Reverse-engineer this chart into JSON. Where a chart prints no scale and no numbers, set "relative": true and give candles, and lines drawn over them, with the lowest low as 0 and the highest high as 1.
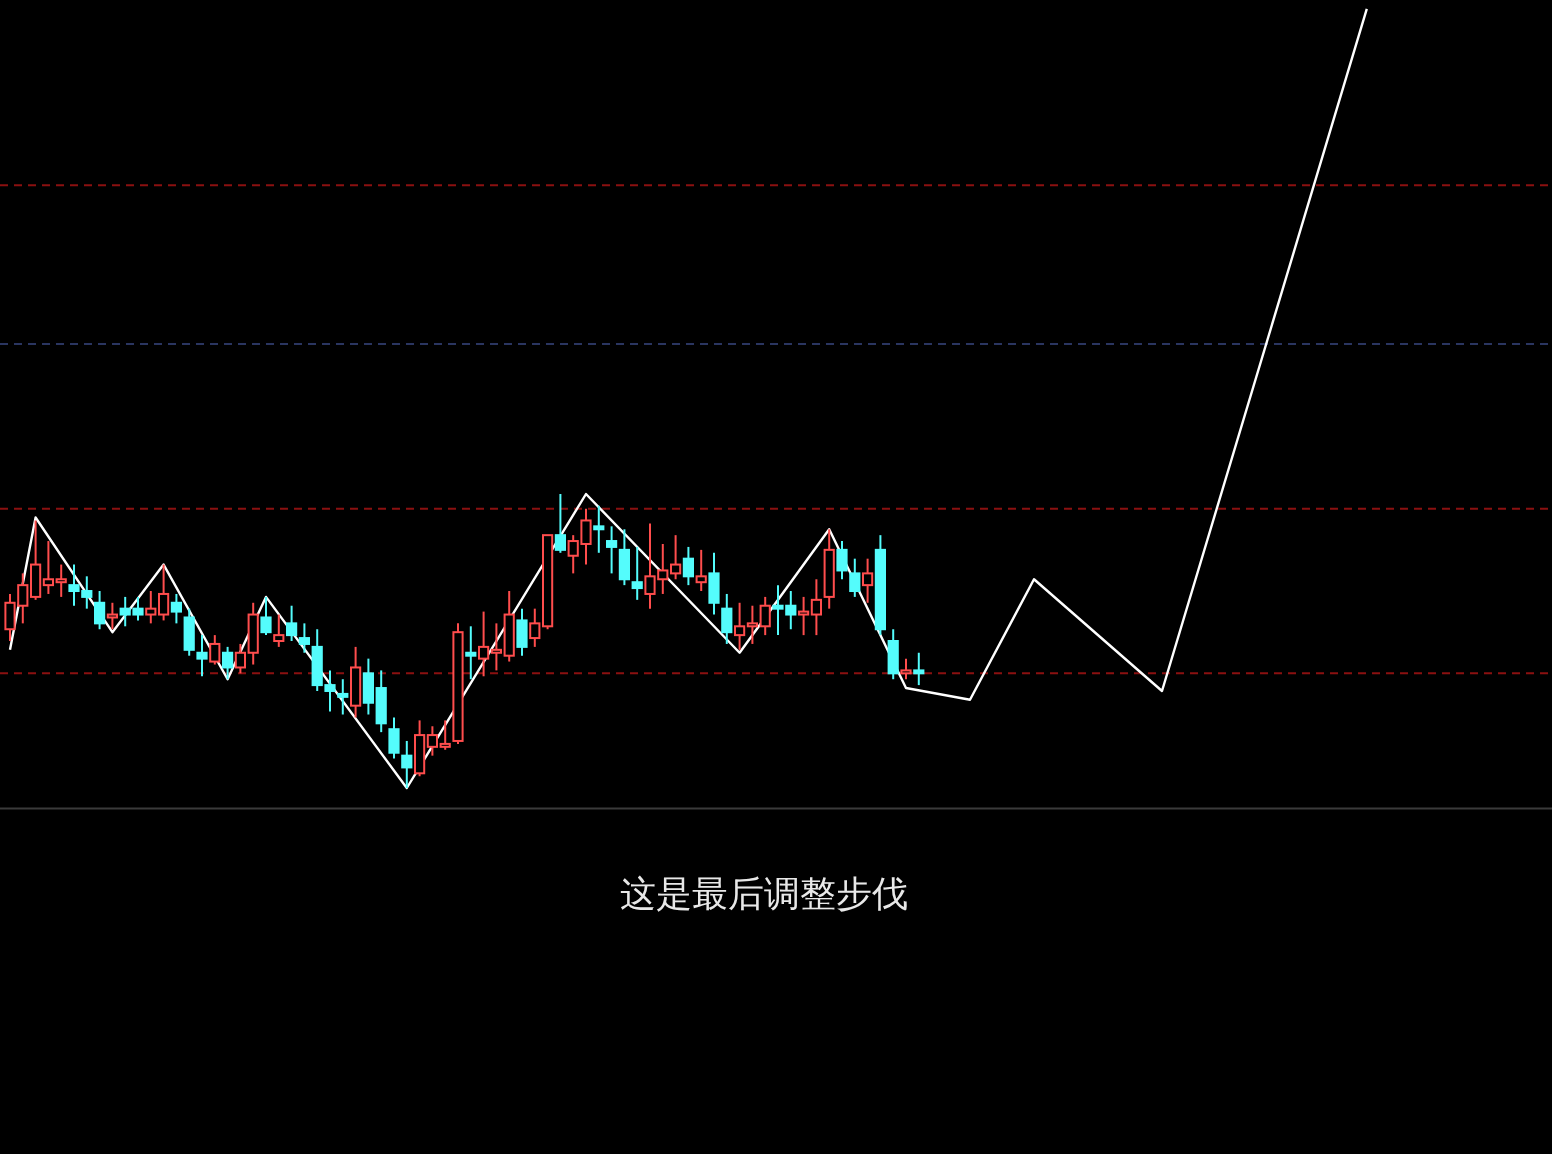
{
  "chart_data": {
    "type": "candlestick",
    "relative": true,
    "categories": [
      null,
      null,
      null,
      null,
      null,
      null,
      null,
      null,
      null,
      null,
      null,
      null,
      null,
      null,
      null,
      null,
      null,
      null,
      null,
      null,
      null,
      null,
      null,
      null,
      null,
      null,
      null,
      null,
      null,
      null,
      null,
      null,
      null,
      null,
      null,
      null,
      null,
      null,
      null,
      null,
      null,
      null,
      null,
      null,
      null,
      null,
      null,
      null,
      null,
      null,
      null,
      null,
      null,
      null,
      null,
      null,
      null,
      null,
      null,
      null,
      null,
      null,
      null,
      null,
      null,
      null,
      null,
      null,
      null,
      null,
      null,
      null,
      null,
      null,
      null,
      null,
      null,
      null,
      null,
      null,
      null,
      null,
      null,
      null,
      null,
      null,
      null,
      null,
      null,
      null,
      null,
      null,
      null,
      null,
      null,
      null,
      null,
      null,
      null,
      null,
      null,
      null,
      null,
      null,
      null,
      null,
      null
    ],
    "annotations": [
      "这是最后调整步伐"
    ],
    "ref_lines": [
      {
        "axis": "y",
        "value": 2.05,
        "color": "#8b1010",
        "line_style": "dashed"
      },
      {
        "axis": "y",
        "value": 1.51,
        "color": "#2a3560",
        "line_style": "dashed"
      },
      {
        "axis": "y",
        "value": 0.95,
        "color": "#8b1010",
        "line_style": "dashed"
      },
      {
        "axis": "y",
        "value": 0.39,
        "color": "#8b1010",
        "line_style": "dashed"
      },
      {
        "axis": "y",
        "value": -0.07,
        "color": "#3a3a3a",
        "line_style": "solid"
      }
    ],
    "series": [
      {
        "colors": [
          "#ff4d4d",
          "#ff4d4d",
          "#ff4d4d",
          "#ff4d4d",
          "#ff4d4d",
          "#54fcfc",
          "#54fcfc",
          "#54fcfc",
          "#ff4d4d",
          "#54fcfc",
          "#54fcfc",
          "#ff4d4d",
          "#ff4d4d",
          "#54fcfc",
          "#54fcfc",
          "#54fcfc",
          "#ff4d4d",
          "#54fcfc",
          "#ff4d4d",
          "#ff4d4d",
          "#54fcfc",
          "#ff4d4d",
          "#54fcfc",
          "#54fcfc",
          "#54fcfc",
          "#54fcfc",
          "#54fcfc",
          "#ff4d4d",
          "#54fcfc",
          "#54fcfc",
          "#54fcfc",
          "#54fcfc",
          "#ff4d4d",
          "#ff4d4d",
          "#ff4d4d",
          "#ff4d4d",
          "#54fcfc",
          "#ff4d4d",
          "#ff4d4d",
          "#ff4d4d",
          "#54fcfc",
          "#ff4d4d",
          "#ff4d4d",
          "#54fcfc",
          "#ff4d4d",
          "#ff4d4d",
          "#54fcfc",
          "#54fcfc",
          "#54fcfc",
          "#54fcfc",
          "#ff4d4d",
          "#ff4d4d",
          "#ff4d4d",
          "#54fcfc",
          "#ff4d4d",
          "#54fcfc",
          "#54fcfc",
          "#ff4d4d",
          "#ff4d4d",
          "#ff4d4d",
          "#54fcfc",
          "#54fcfc",
          "#ff4d4d",
          "#ff4d4d",
          "#ff4d4d",
          "#54fcfc",
          "#54fcfc",
          "#ff4d4d",
          "#54fcfc",
          "#54fcfc",
          "#ff4d4d",
          "#54fcfc",
          null,
          null,
          null,
          null,
          null,
          null,
          null,
          null,
          null,
          null,
          null,
          null,
          null,
          null,
          null,
          null,
          null,
          null,
          null,
          null,
          null,
          null,
          null,
          null,
          null,
          null,
          null,
          null,
          null,
          null,
          null,
          null,
          null,
          null,
          null
        ],
        "ohlc": [
          [
            0.54,
            0.66,
            0.5,
            0.63
          ],
          [
            0.62,
            0.73,
            0.56,
            0.69
          ],
          [
            0.65,
            0.91,
            0.64,
            0.76
          ],
          [
            0.69,
            0.84,
            0.66,
            0.71
          ],
          [
            0.7,
            0.76,
            0.65,
            0.71
          ],
          [
            0.69,
            0.76,
            0.62,
            0.67
          ],
          [
            0.67,
            0.72,
            0.61,
            0.65
          ],
          [
            0.63,
            0.67,
            0.54,
            0.56
          ],
          [
            0.58,
            0.63,
            0.54,
            0.59
          ],
          [
            0.61,
            0.65,
            0.55,
            0.59
          ],
          [
            0.61,
            0.65,
            0.57,
            0.59
          ],
          [
            0.59,
            0.67,
            0.56,
            0.61
          ],
          [
            0.59,
            0.76,
            0.57,
            0.66
          ],
          [
            0.63,
            0.66,
            0.56,
            0.6
          ],
          [
            0.58,
            0.61,
            0.45,
            0.47
          ],
          [
            0.46,
            0.52,
            0.38,
            0.44
          ],
          [
            0.43,
            0.52,
            0.42,
            0.49
          ],
          [
            0.46,
            0.48,
            0.37,
            0.41
          ],
          [
            0.41,
            0.49,
            0.39,
            0.46
          ],
          [
            0.46,
            0.63,
            0.42,
            0.59
          ],
          [
            0.58,
            0.65,
            0.52,
            0.53
          ],
          [
            0.5,
            0.59,
            0.48,
            0.52
          ],
          [
            0.56,
            0.62,
            0.5,
            0.52
          ],
          [
            0.51,
            0.56,
            0.46,
            0.49
          ],
          [
            0.48,
            0.54,
            0.33,
            0.35
          ],
          [
            0.35,
            0.4,
            0.26,
            0.33
          ],
          [
            0.32,
            0.37,
            0.25,
            0.31
          ],
          [
            0.28,
            0.48,
            0.24,
            0.41
          ],
          [
            0.39,
            0.44,
            0.25,
            0.29
          ],
          [
            0.34,
            0.4,
            0.19,
            0.22
          ],
          [
            0.2,
            0.24,
            0.1,
            0.12
          ],
          [
            0.11,
            0.16,
            0,
            0.07
          ],
          [
            0.05,
            0.23,
            0.04,
            0.18
          ],
          [
            0.14,
            0.21,
            0.11,
            0.18
          ],
          [
            0.14,
            0.23,
            0.13,
            0.15
          ],
          [
            0.16,
            0.56,
            0.15,
            0.53
          ],
          [
            0.46,
            0.55,
            0.37,
            0.45
          ],
          [
            0.44,
            0.6,
            0.38,
            0.48
          ],
          [
            0.46,
            0.56,
            0.4,
            0.47
          ],
          [
            0.45,
            0.67,
            0.43,
            0.59
          ],
          [
            0.57,
            0.61,
            0.45,
            0.48
          ],
          [
            0.51,
            0.61,
            0.48,
            0.56
          ],
          [
            0.55,
            0.86,
            0.54,
            0.86
          ],
          [
            0.86,
            1,
            0.8,
            0.81
          ],
          [
            0.79,
            0.86,
            0.73,
            0.84
          ],
          [
            0.83,
            0.95,
            0.76,
            0.91
          ],
          [
            0.89,
            0.96,
            0.8,
            0.88
          ],
          [
            0.84,
            0.89,
            0.73,
            0.82
          ],
          [
            0.81,
            0.88,
            0.69,
            0.71
          ],
          [
            0.7,
            0.82,
            0.64,
            0.68
          ],
          [
            0.66,
            0.9,
            0.61,
            0.72
          ],
          [
            0.71,
            0.83,
            0.66,
            0.74
          ],
          [
            0.73,
            0.86,
            0.71,
            0.76
          ],
          [
            0.78,
            0.82,
            0.69,
            0.72
          ],
          [
            0.7,
            0.81,
            0.67,
            0.72
          ],
          [
            0.73,
            0.8,
            0.59,
            0.63
          ],
          [
            0.61,
            0.66,
            0.49,
            0.53
          ],
          [
            0.52,
            0.63,
            0.47,
            0.55
          ],
          [
            0.55,
            0.62,
            0.49,
            0.56
          ],
          [
            0.55,
            0.65,
            0.52,
            0.62
          ],
          [
            0.62,
            0.69,
            0.52,
            0.61
          ],
          [
            0.62,
            0.67,
            0.54,
            0.59
          ],
          [
            0.59,
            0.65,
            0.52,
            0.6
          ],
          [
            0.59,
            0.71,
            0.52,
            0.64
          ],
          [
            0.65,
            0.88,
            0.61,
            0.81
          ],
          [
            0.81,
            0.84,
            0.71,
            0.74
          ],
          [
            0.73,
            0.78,
            0.65,
            0.67
          ],
          [
            0.69,
            0.78,
            0.63,
            0.73
          ],
          [
            0.81,
            0.86,
            0.52,
            0.54
          ],
          [
            0.5,
            0.54,
            0.37,
            0.39
          ],
          [
            0.39,
            0.44,
            0.37,
            0.4
          ],
          [
            0.4,
            0.46,
            0.35,
            0.39
          ],
          null,
          null,
          null,
          null,
          null,
          null,
          null,
          null,
          null,
          null,
          null,
          null,
          null,
          null,
          null,
          null,
          null,
          null,
          null,
          null,
          null,
          null,
          null,
          null,
          null,
          null,
          null,
          null,
          null,
          null,
          null,
          null,
          null,
          null,
          null
        ]
      },
      {
        "type": "line",
        "color": "#ffffff",
        "values": [
          0.47,
          null,
          0.92,
          null,
          null,
          null,
          null,
          null,
          0.53,
          null,
          null,
          null,
          0.76,
          null,
          null,
          null,
          null,
          0.37,
          null,
          null,
          0.65,
          null,
          null,
          null,
          null,
          null,
          null,
          null,
          null,
          null,
          null,
          0,
          null,
          null,
          null,
          null,
          null,
          null,
          null,
          null,
          null,
          null,
          null,
          null,
          null,
          1.0,
          null,
          null,
          null,
          null,
          null,
          null,
          null,
          null,
          null,
          null,
          null,
          0.46,
          null,
          null,
          null,
          null,
          null,
          null,
          0.88,
          null,
          null,
          null,
          null,
          null,
          0.34,
          null,
          null,
          null,
          null,
          0.3,
          null,
          null,
          null,
          null,
          0.71,
          null,
          null,
          null,
          null,
          null,
          null,
          null,
          null,
          null,
          0.33,
          null,
          null,
          null,
          null,
          null,
          null,
          null,
          null,
          null,
          null,
          null,
          null,
          null,
          null,
          null,
          2.65
        ]
      }
    ]
  }
}
